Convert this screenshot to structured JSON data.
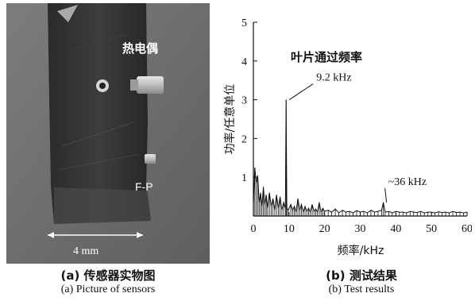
{
  "photo": {
    "thermocouple_label": "热电偶",
    "fp_label": "F-P",
    "scale_label": "4 mm"
  },
  "captions": {
    "a_cn": "(a) 传感器实物图",
    "a_en": "(a) Picture of sensors",
    "b_cn": "(b) 测试结果",
    "b_en": "(b) Test results"
  },
  "chart_data": {
    "type": "line",
    "title": "叶片通过频率",
    "xlabel": "频率/kHz",
    "ylabel": "功率/任意单位",
    "xlim": [
      0,
      60
    ],
    "ylim": [
      0,
      5
    ],
    "xticks": [
      0,
      10,
      20,
      30,
      40,
      50,
      60
    ],
    "yticks": [
      1,
      2,
      3,
      4,
      5
    ],
    "grid": false,
    "annotations": [
      {
        "text": "9.2 kHz",
        "x": 9.2,
        "y": 3.0
      },
      {
        "text": "~36 kHz",
        "x": 36.5,
        "y": 0.35
      }
    ],
    "series": [
      {
        "x": [
          0,
          0.4,
          0.8,
          1.2,
          1.6,
          2.0,
          2.4,
          2.8,
          3.2,
          3.6,
          4.0,
          4.5,
          5.0,
          5.5,
          6.0,
          6.5,
          7.0,
          7.5,
          8.0,
          8.5,
          9.0,
          9.2,
          9.4,
          9.8,
          10.5,
          11.0,
          11.5,
          12.0,
          12.5,
          13.0,
          13.5,
          14.0,
          14.5,
          15.0,
          15.5,
          16.0,
          16.5,
          17.0,
          17.5,
          18.0,
          18.5,
          19.0,
          19.5,
          20.0,
          21.0,
          22.0,
          23.0,
          24.0,
          25.0,
          26.0,
          27.0,
          28.0,
          29.0,
          30.0,
          31.0,
          32.0,
          33.0,
          34.0,
          35.0,
          36.0,
          36.5,
          37.0,
          38.0,
          39.0,
          40.0,
          41.0,
          42.0,
          43.0,
          44.0,
          45.0,
          46.0,
          47.0,
          48.0,
          49.0,
          50.0,
          51.0,
          52.0,
          53.0,
          54.0,
          55.0,
          56.0,
          57.0,
          58.0,
          59.0,
          60.0
        ],
        "values": [
          0.3,
          1.25,
          0.85,
          1.05,
          0.35,
          0.6,
          0.25,
          0.75,
          0.3,
          0.55,
          0.2,
          0.6,
          0.25,
          0.45,
          0.15,
          0.55,
          0.2,
          0.5,
          0.15,
          0.35,
          0.2,
          3.0,
          0.2,
          0.15,
          0.3,
          0.15,
          0.25,
          0.1,
          0.45,
          0.15,
          0.3,
          0.1,
          0.25,
          0.12,
          0.2,
          0.1,
          0.3,
          0.12,
          0.18,
          0.1,
          0.35,
          0.1,
          0.2,
          0.12,
          0.15,
          0.1,
          0.18,
          0.08,
          0.15,
          0.1,
          0.12,
          0.08,
          0.14,
          0.1,
          0.12,
          0.08,
          0.15,
          0.1,
          0.12,
          0.15,
          0.35,
          0.1,
          0.12,
          0.08,
          0.12,
          0.1,
          0.1,
          0.08,
          0.12,
          0.1,
          0.09,
          0.12,
          0.08,
          0.1,
          0.1,
          0.08,
          0.11,
          0.09,
          0.1,
          0.08,
          0.12,
          0.09,
          0.1,
          0.08,
          0.1
        ]
      }
    ]
  }
}
